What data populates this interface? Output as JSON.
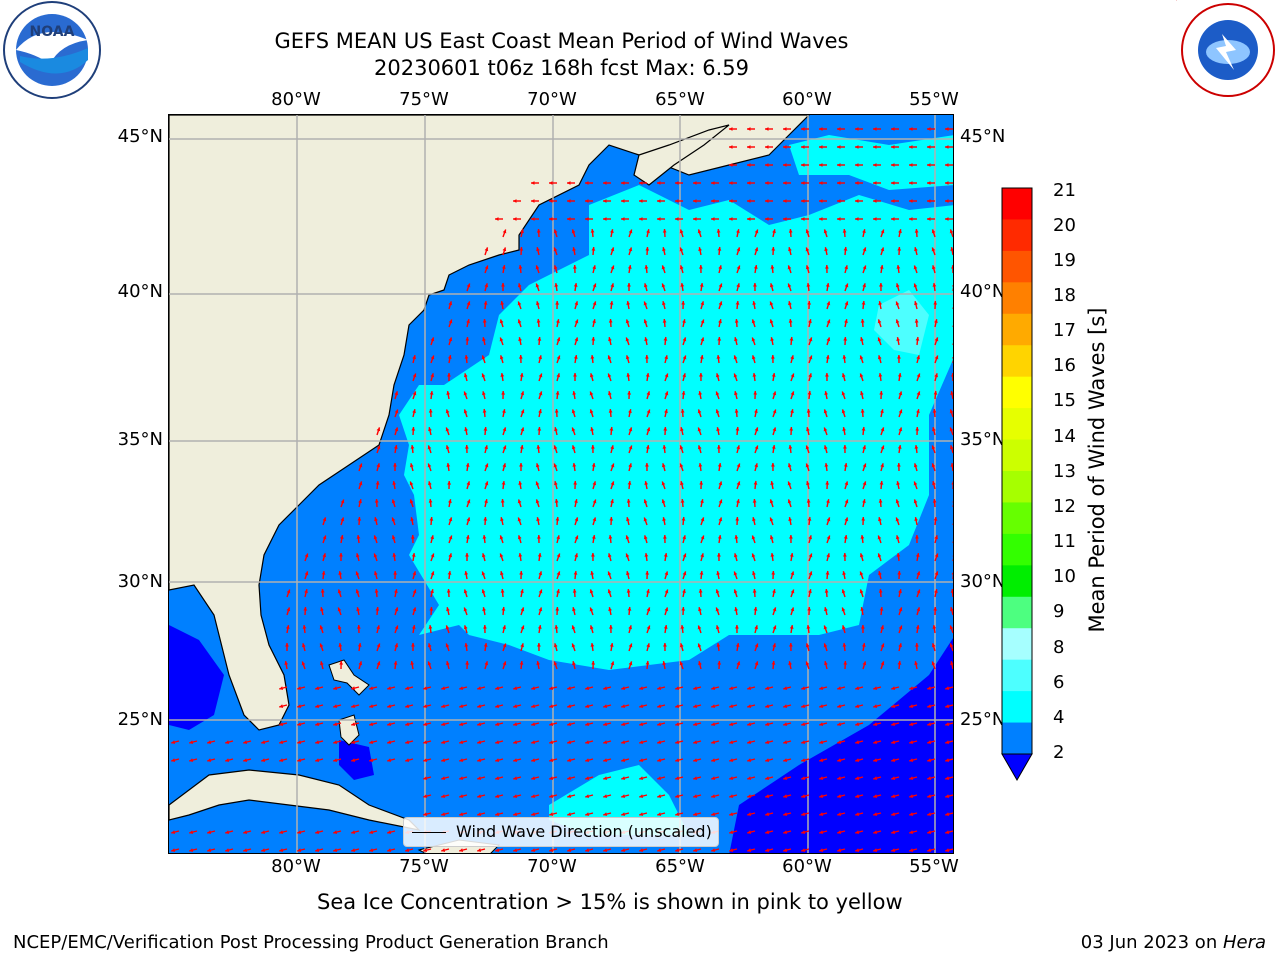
{
  "title": {
    "line1": "GEFS MEAN US East Coast Mean Period of Wind Waves",
    "line2": "20230601 t06z 168h fcst   Max: 6.59"
  },
  "logos": {
    "left": "NOAA",
    "right": "NATIONAL WEATHER SERVICE"
  },
  "map": {
    "lon_ticks_top": [
      "80°W",
      "75°W",
      "70°W",
      "65°W",
      "60°W",
      "55°W"
    ],
    "lon_ticks_bottom": [
      "80°W",
      "75°W",
      "70°W",
      "65°W",
      "60°W",
      "55°W"
    ],
    "lat_ticks_left": [
      "45°N",
      "40°N",
      "35°N",
      "30°N",
      "25°N"
    ],
    "lat_ticks_right": [
      "45°N",
      "40°N",
      "35°N",
      "30°N",
      "25°N"
    ],
    "lon_range": [
      -85,
      -54.2
    ],
    "lat_range": [
      20.5,
      45.8
    ],
    "colors": {
      "land": "#efeedc",
      "band_2_4": "#0080ff",
      "band_4_6": "#00ffff",
      "band_6_8": "#4dffff",
      "below_2": "#0000ff",
      "arrow": "#ff0000",
      "grid": "#b0b0b0"
    },
    "legend_label": "Wind Wave Direction (unscaled)"
  },
  "colorbar": {
    "label": "Mean Period of Wind Waves [s]",
    "ticks": [
      "21",
      "20",
      "19",
      "18",
      "17",
      "16",
      "15",
      "14",
      "13",
      "12",
      "11",
      "10",
      "9",
      "8",
      "6",
      "4",
      "2"
    ],
    "colors": [
      "#ff0000",
      "#ff2a00",
      "#ff5500",
      "#ff8000",
      "#ffaa00",
      "#ffd400",
      "#ffff00",
      "#e6ff00",
      "#ccff00",
      "#a6ff00",
      "#66ff00",
      "#33ff00",
      "#00ee00",
      "#4dff80",
      "#a6ffff",
      "#4dffff",
      "#00ffff",
      "#0080ff",
      "#0000ff"
    ]
  },
  "notes": {
    "sea_ice": "Sea Ice Concentration > 15% is shown in pink to yellow"
  },
  "footer": {
    "left": "NCEP/EMC/Verification Post Processing Product Generation Branch",
    "right_date": "03 Jun 2023 on ",
    "right_host": "Hera"
  }
}
